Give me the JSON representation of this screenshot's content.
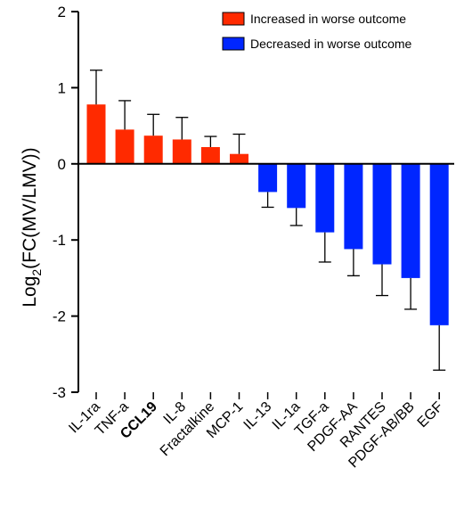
{
  "chart_data": {
    "type": "bar",
    "ylabel_main": "Log",
    "ylabel_sub": "2",
    "ylabel_rest": "(FC(MV/LMV))",
    "ylim": [
      -3,
      2
    ],
    "yticks": [
      "-3",
      "-2",
      "-1",
      "0",
      "1",
      "2"
    ],
    "grid": false,
    "legend_position": "top-right",
    "categories": [
      "IL-1ra",
      "TNF-a",
      "CCL19",
      "IL-8",
      "Fractalkine",
      "MCP-1",
      "IL-13",
      "IL-1a",
      "TGF-a",
      "PDGF-AA",
      "RANTES",
      "PDGF-AB/BB",
      "EGF"
    ],
    "bold_categories": [
      "CCL19"
    ],
    "values": [
      0.78,
      0.45,
      0.37,
      0.32,
      0.22,
      0.13,
      -0.37,
      -0.58,
      -0.9,
      -1.12,
      -1.32,
      -1.5,
      -2.12
    ],
    "errors": [
      0.45,
      0.38,
      0.28,
      0.29,
      0.14,
      0.26,
      0.2,
      0.23,
      0.39,
      0.35,
      0.41,
      0.41,
      0.59
    ],
    "series": [
      {
        "name": "Increased in worse outcome",
        "color": "#ff2a00",
        "count": 6
      },
      {
        "name": "Decreased in worse outcome",
        "color": "#0026ff",
        "count": 7
      }
    ]
  }
}
